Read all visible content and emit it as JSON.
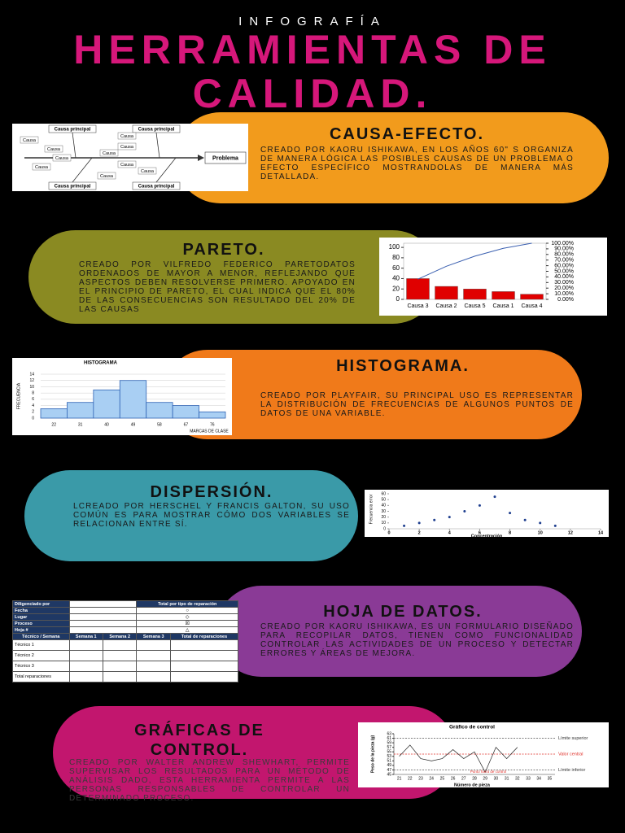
{
  "header": {
    "kicker": "INFOGRAFÍA",
    "title": "HERRAMIENTAS DE CALIDAD."
  },
  "sections": [
    {
      "title": "CAUSA-EFECTO.",
      "text": "CREADO POR KAORU ISHIKAWA, EN LOS AÑOS 60\" S ORGANIZA DE MANERA LÓGICA LAS POSIBLES CAUSAS DE UN PROBLEMA O EFECTO ESPECÍFICO MOSTRANDOLAS DE MANERA MÁS DETALLADA."
    },
    {
      "title": "PARETO.",
      "text": "CREADO POR VILFREDO FEDERICO PARETODATOS ORDENADOS DE MAYOR A MENOR, REFLEJANDO QUE ASPECTOS DEBEN RESOLVERSE PRIMERO. APOYADO EN EL PRINCIPIO DE PARETO, EL CUAL INDICA QUE EL 80% DE LAS CONSECUENCIAS SON RESULTADO DEL 20% DE LAS CAUSAS"
    },
    {
      "title": "HISTOGRAMA.",
      "text": "CREADO POR PLAYFAIR, SU PRINCIPAL USO ES REPRESENTAR LA DISTRIBUCIÓN DE FRECUENCIAS DE ALGUNOS PUNTOS DE DATOS DE UNA VARIABLE."
    },
    {
      "title": "DISPERSIÓN.",
      "text": "LCREADO POR HERSCHEL Y FRANCIS GALTON, SU USO COMÚN ES PARA MOSTRAR CÓMO DOS VARIABLES SE RELACIONAN ENTRE SÍ."
    },
    {
      "title": "HOJA DE DATOS.",
      "text": "CREADO POR KAORU ISHIKAWA, ES UN FORMULARIO DISEÑADO PARA RECOPILAR DATOS, TIENEN COMO FUNCIONALIDAD CONTROLAR LAS ACTIVIDADES DE UN PROCESO Y DETECTAR ERRORES Y ÁREAS DE MEJORA."
    },
    {
      "title": "GRÁFICAS DE CONTROL.",
      "text": "CREADO POR WALTER ANDREW SHEWHART, PERMITE SUPERVISAR LOS RESULTADOS PARA UN MÉTODO DE ANÁLISIS DADO, ESTA HERRAMIENTA PERMITE A LAS PERSONAS RESPONSABLES DE CONTROLAR UN DETERMINADO PROCESO."
    }
  ],
  "fishbone": {
    "causes": [
      "Causa principal",
      "Causa principal",
      "Causa principal",
      "Causa principal"
    ],
    "subcauses": [
      "Causa",
      "Causa",
      "Causa",
      "Causa",
      "Causa",
      "Causa",
      "Causa",
      "Causa",
      "Causa",
      "Causa"
    ],
    "problem": "Problema"
  },
  "pareto": {
    "type": "bar",
    "categories": [
      "Causa 3",
      "Causa 2",
      "Causa 5",
      "Causa 1",
      "Causa 4"
    ],
    "series": [
      {
        "color": "#e00000",
        "values": [
          40,
          25,
          20,
          15,
          10
        ]
      },
      {
        "color": "#3a5fb0",
        "axis": "y2",
        "values": [
          36,
          59,
          77,
          91,
          100
        ]
      }
    ],
    "ylim": [
      0,
      108
    ],
    "yticks": [
      0,
      20,
      40,
      60,
      80,
      100
    ],
    "y2lim": [
      0,
      100
    ],
    "y2ticks": [
      {
        "value": 0,
        "label": "0.00%"
      },
      {
        "value": 10,
        "label": "10.00%"
      },
      {
        "value": 20,
        "label": "20.00%"
      },
      {
        "value": 30,
        "label": "30.00%"
      },
      {
        "value": 40,
        "label": "40.00%"
      },
      {
        "value": 50,
        "label": "50.00%"
      },
      {
        "value": 60,
        "label": "60.00%"
      },
      {
        "value": 70,
        "label": "70.00%"
      },
      {
        "value": 80,
        "label": "80.00%"
      },
      {
        "value": 90,
        "label": "90.00%"
      },
      {
        "value": 100,
        "label": "100.00%"
      }
    ]
  },
  "histogram": {
    "type": "bar",
    "title": "HISTOGRAMA",
    "y_label": "FRECUENCIA",
    "x_label": "MARCAS DE CLASE",
    "categories": [
      "22",
      "31",
      "40",
      "49",
      "58",
      "67",
      "76"
    ],
    "values": [
      3,
      5,
      9,
      12,
      5,
      4,
      2
    ],
    "color": "#a9cff3",
    "ylim": [
      0,
      14
    ],
    "yticks": [
      0,
      2,
      4,
      6,
      8,
      10,
      12,
      14
    ]
  },
  "scatter": {
    "type": "scatter",
    "y_label": "Frecuencia error",
    "x_label": "Concentración",
    "x": [
      1,
      2,
      3,
      4,
      5,
      6,
      7,
      8,
      9,
      10,
      11
    ],
    "y": [
      5,
      10,
      15,
      20,
      30,
      40,
      55,
      27,
      15,
      10,
      5
    ],
    "color": "#1f3f8f",
    "xlim": [
      0,
      14
    ],
    "xticks": [
      0,
      2,
      4,
      6,
      8,
      10,
      12,
      14
    ],
    "ylim": [
      0,
      60
    ],
    "yticks": [
      0,
      10,
      20,
      30,
      40,
      50,
      60
    ]
  },
  "sheet": {
    "top_rows": [
      "Diligenciado por",
      "Fecha",
      "Lugar",
      "Proceso",
      "Hoja #"
    ],
    "total_header": "Total por tipo de reparación",
    "symbols": [
      "○",
      "◇",
      "☒",
      "△"
    ],
    "columns": [
      "Técnico / Semana",
      "Semana 1",
      "Semana 2",
      "Semana 3",
      "Total de reparaciones"
    ],
    "rows": [
      "Técnico 1",
      "Técnico 2",
      "Técnico 3",
      "Total reparaciones"
    ]
  },
  "control": {
    "type": "line",
    "title": "Gráfico de control",
    "y_label": "Peso de la pieza (g)",
    "x_label": "Número de pieza",
    "categories": [
      "21",
      "22",
      "23",
      "24",
      "25",
      "26",
      "27",
      "28",
      "29",
      "30",
      "31",
      "32",
      "33",
      "34",
      "35"
    ],
    "values": [
      53,
      58,
      52,
      51,
      52,
      56,
      52,
      55,
      46,
      57,
      52,
      57,
      null,
      null,
      null
    ],
    "color": "#222222",
    "ylim": [
      45,
      63
    ],
    "yticks": [
      45,
      47,
      49,
      51,
      53,
      55,
      57,
      59,
      61,
      63
    ],
    "limits": [
      {
        "label": "Límite superior",
        "value": 61,
        "color": "#333333"
      },
      {
        "label": "Valor central",
        "value": 54,
        "color": "#e0302a"
      },
      {
        "label": "Límite inferior",
        "value": 47,
        "color": "#333333"
      }
    ],
    "annotation": "Punto fuera de control"
  }
}
